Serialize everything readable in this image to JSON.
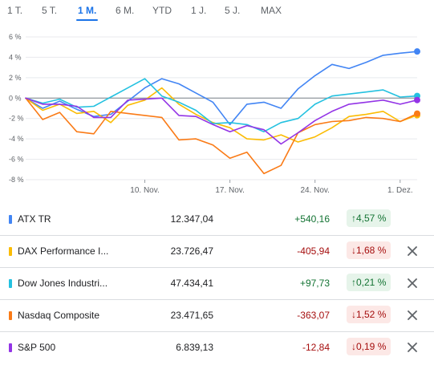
{
  "tabs": [
    {
      "label": "1 T.",
      "active": false
    },
    {
      "label": "5 T.",
      "active": false
    },
    {
      "label": "1 M.",
      "active": true
    },
    {
      "label": "6 M.",
      "active": false
    },
    {
      "label": "YTD",
      "active": false
    },
    {
      "label": "1 J.",
      "active": false
    },
    {
      "label": "5 J.",
      "active": false
    },
    {
      "label": "MAX",
      "active": false
    }
  ],
  "chart_data": {
    "type": "line",
    "y_ticks": [
      "6 %",
      "4 %",
      "2 %",
      "0 %",
      "-2 %",
      "-4 %",
      "-6 %",
      "-8 %"
    ],
    "ylim": [
      -8,
      6
    ],
    "x_ticks": [
      {
        "label": "10. Nov.",
        "x": 5
      },
      {
        "label": "17. Nov.",
        "x": 10
      },
      {
        "label": "24. Nov.",
        "x": 15
      },
      {
        "label": "1. Dez.",
        "x": 20
      }
    ],
    "xlim": [
      -2,
      21
    ],
    "x": [
      -2,
      -1,
      0,
      1,
      2,
      3,
      4,
      5,
      6,
      7,
      8,
      9,
      10,
      11,
      12,
      13,
      14,
      15,
      16,
      17,
      18,
      19,
      20,
      21
    ],
    "grid": true,
    "series": [
      {
        "name": "ATX TR",
        "color": "#4285f4",
        "values": [
          0,
          -1.0,
          -0.3,
          -1.1,
          -1.8,
          -1.6,
          -0.3,
          1.0,
          1.9,
          1.4,
          0.5,
          -0.4,
          -2.6,
          -0.6,
          -0.4,
          -1.0,
          0.9,
          2.2,
          3.3,
          2.9,
          3.5,
          4.2,
          4.4,
          4.57
        ]
      },
      {
        "name": "DAX Performance I...",
        "color": "#fbbc04",
        "values": [
          0,
          -1.2,
          -0.6,
          -1.5,
          -1.3,
          -2.4,
          -0.7,
          -0.2,
          1.0,
          -0.6,
          -1.6,
          -2.4,
          -2.9,
          -4.0,
          -4.1,
          -3.6,
          -4.3,
          -3.8,
          -2.9,
          -1.8,
          -1.6,
          -1.3,
          -2.3,
          -1.68
        ]
      },
      {
        "name": "Dow Jones Industri...",
        "color": "#24c1e0",
        "values": [
          0,
          -0.5,
          -0.1,
          -0.9,
          -0.8,
          0.1,
          1.0,
          1.9,
          0.2,
          -0.4,
          -1.2,
          -2.5,
          -2.4,
          -2.6,
          -3.3,
          -2.4,
          -2.0,
          -0.6,
          0.2,
          0.4,
          0.6,
          0.8,
          0.1,
          0.21
        ]
      },
      {
        "name": "Nasdaq Composite",
        "color": "#fa7b17",
        "values": [
          0,
          -2.1,
          -1.4,
          -3.3,
          -3.5,
          -1.3,
          -1.5,
          -1.7,
          -1.9,
          -4.1,
          -4.0,
          -4.6,
          -5.9,
          -5.3,
          -7.4,
          -6.6,
          -3.4,
          -2.6,
          -2.3,
          -2.2,
          -1.9,
          -2.0,
          -2.3,
          -1.52
        ]
      },
      {
        "name": "S&P 500",
        "color": "#9334e6",
        "values": [
          0,
          -0.6,
          -0.6,
          -0.8,
          -1.9,
          -1.9,
          -0.2,
          -0.1,
          0.0,
          -1.7,
          -1.8,
          -2.6,
          -3.3,
          -2.7,
          -3.1,
          -4.5,
          -3.4,
          -2.2,
          -1.3,
          -0.6,
          -0.4,
          -0.2,
          -0.6,
          -0.19
        ]
      }
    ]
  },
  "rows": [
    {
      "name": "ATX TR",
      "color": "#4285f4",
      "price": "12.347,04",
      "change": "+540,16",
      "pct": "4,57 %",
      "dir": "pos",
      "arrow": "↑",
      "removable": false
    },
    {
      "name": "DAX Performance I...",
      "color": "#fbbc04",
      "price": "23.726,47",
      "change": "-405,94",
      "pct": "1,68 %",
      "dir": "neg",
      "arrow": "↓",
      "removable": true
    },
    {
      "name": "Dow Jones Industri...",
      "color": "#24c1e0",
      "price": "47.434,41",
      "change": "+97,73",
      "pct": "0,21 %",
      "dir": "pos",
      "arrow": "↑",
      "removable": true
    },
    {
      "name": "Nasdaq Composite",
      "color": "#fa7b17",
      "price": "23.471,65",
      "change": "-363,07",
      "pct": "1,52 %",
      "dir": "neg",
      "arrow": "↓",
      "removable": true
    },
    {
      "name": "S&P 500",
      "color": "#9334e6",
      "price": "6.839,13",
      "change": "-12,84",
      "pct": "0,19 %",
      "dir": "neg",
      "arrow": "↓",
      "removable": true
    }
  ]
}
